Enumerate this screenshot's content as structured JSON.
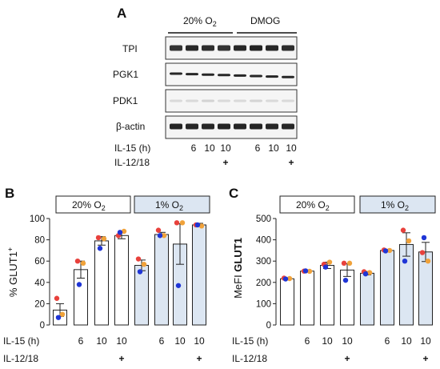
{
  "colors": {
    "bar_normoxia": "#ffffff",
    "bar_hypoxia": "#dce6f2",
    "dot_red": "#e8413c",
    "dot_orange": "#f0a23a",
    "dot_blue": "#1f35d6"
  },
  "panel_a": {
    "letter": "A",
    "condition_labels": [
      "20% O2",
      "DMOG"
    ],
    "blot_labels": [
      "TPI",
      "PGK1",
      "PDK1",
      "β-actin"
    ],
    "row_labels": [
      "IL-15 (h)",
      "IL-12/18"
    ],
    "il15_values": [
      "",
      "6",
      "10",
      "10",
      "",
      "6",
      "10",
      "10"
    ],
    "il1218_values": [
      "",
      "",
      "",
      "+",
      "",
      "",
      "",
      "+"
    ]
  },
  "panel_b": {
    "letter": "B",
    "condition_labels": [
      "20% O2",
      "1% O2"
    ],
    "row_labels": [
      "IL-15 (h)",
      "IL-12/18"
    ],
    "il15_values": [
      "",
      "6",
      "10",
      "10",
      "",
      "6",
      "10",
      "10"
    ],
    "il1218_values": [
      "",
      "",
      "",
      "+",
      "",
      "",
      "",
      "+"
    ]
  },
  "panel_c": {
    "letter": "C",
    "condition_labels": [
      "20% O2",
      "1% O2"
    ],
    "row_labels": [
      "IL-15 (h)",
      "IL-12/18"
    ],
    "il15_values": [
      "",
      "6",
      "10",
      "10",
      "",
      "6",
      "10",
      "10"
    ],
    "il1218_values": [
      "",
      "",
      "",
      "+",
      "",
      "",
      "",
      "+"
    ]
  },
  "chart_data": [
    {
      "type": "bar",
      "panel": "B",
      "ylabel": "% GLUT1+",
      "ylim": [
        0,
        100
      ],
      "yticks": [
        0,
        20,
        40,
        60,
        80,
        100
      ],
      "categories": [
        "20% O2 0h",
        "20% O2 IL-15 6h",
        "20% O2 IL-15 10h",
        "20% O2 IL-15 10h + IL-12/18",
        "1% O2 0h",
        "1% O2 IL-15 6h",
        "1% O2 IL-15 10h",
        "1% O2 IL-15 10h + IL-12/18"
      ],
      "values": [
        14,
        52,
        79,
        84,
        56,
        85,
        76,
        94
      ],
      "errors": [
        6,
        8,
        4,
        3,
        5,
        2,
        19,
        1.5
      ],
      "hypoxia": [
        false,
        false,
        false,
        false,
        true,
        true,
        true,
        true
      ],
      "points": [
        [
          {
            "c": "red",
            "v": 25
          },
          {
            "c": "orange",
            "v": 10
          },
          {
            "c": "blue",
            "v": 7
          }
        ],
        [
          {
            "c": "red",
            "v": 60
          },
          {
            "c": "orange",
            "v": 58
          },
          {
            "c": "blue",
            "v": 38
          }
        ],
        [
          {
            "c": "red",
            "v": 82
          },
          {
            "c": "orange",
            "v": 81
          },
          {
            "c": "blue",
            "v": 72
          }
        ],
        [
          {
            "c": "red",
            "v": 84
          },
          {
            "c": "orange",
            "v": 88
          },
          {
            "c": "blue",
            "v": 87
          }
        ],
        [
          {
            "c": "red",
            "v": 62
          },
          {
            "c": "orange",
            "v": 57
          },
          {
            "c": "blue",
            "v": 50
          }
        ],
        [
          {
            "c": "red",
            "v": 89
          },
          {
            "c": "orange",
            "v": 84
          },
          {
            "c": "blue",
            "v": 84
          }
        ],
        [
          {
            "c": "red",
            "v": 96
          },
          {
            "c": "orange",
            "v": 96
          },
          {
            "c": "blue",
            "v": 37
          }
        ],
        [
          {
            "c": "red",
            "v": 94
          },
          {
            "c": "orange",
            "v": 93
          },
          {
            "c": "blue",
            "v": 94
          }
        ]
      ]
    },
    {
      "type": "bar",
      "panel": "C",
      "ylabel": "MeFI GLUT1",
      "ylim": [
        0,
        500
      ],
      "yticks": [
        0,
        100,
        200,
        300,
        400,
        500
      ],
      "categories": [
        "20% O2 0h",
        "20% O2 IL-15 6h",
        "20% O2 IL-15 10h",
        "20% O2 IL-15 10h + IL-12/18",
        "1% O2 0h",
        "1% O2 IL-15 6h",
        "1% O2 IL-15 10h",
        "1% O2 IL-15 10h + IL-12/18"
      ],
      "values": [
        217,
        253,
        280,
        258,
        243,
        350,
        378,
        343
      ],
      "errors": [
        4,
        3,
        15,
        30,
        8,
        5,
        55,
        45
      ],
      "hypoxia": [
        false,
        false,
        false,
        false,
        true,
        true,
        true,
        true
      ],
      "points": [
        [
          {
            "c": "red",
            "v": 220
          },
          {
            "c": "orange",
            "v": 218
          },
          {
            "c": "blue",
            "v": 216
          }
        ],
        [
          {
            "c": "red",
            "v": 253
          },
          {
            "c": "orange",
            "v": 252
          },
          {
            "c": "blue",
            "v": 254
          }
        ],
        [
          {
            "c": "red",
            "v": 285
          },
          {
            "c": "orange",
            "v": 295
          },
          {
            "c": "blue",
            "v": 272
          }
        ],
        [
          {
            "c": "red",
            "v": 290
          },
          {
            "c": "orange",
            "v": 290
          },
          {
            "c": "blue",
            "v": 210
          }
        ],
        [
          {
            "c": "red",
            "v": 250
          },
          {
            "c": "orange",
            "v": 246
          },
          {
            "c": "blue",
            "v": 240
          }
        ],
        [
          {
            "c": "red",
            "v": 352
          },
          {
            "c": "orange",
            "v": 350
          },
          {
            "c": "blue",
            "v": 348
          }
        ],
        [
          {
            "c": "red",
            "v": 445
          },
          {
            "c": "orange",
            "v": 395
          },
          {
            "c": "blue",
            "v": 300
          }
        ],
        [
          {
            "c": "red",
            "v": 340
          },
          {
            "c": "orange",
            "v": 300
          },
          {
            "c": "blue",
            "v": 410
          }
        ]
      ]
    }
  ]
}
